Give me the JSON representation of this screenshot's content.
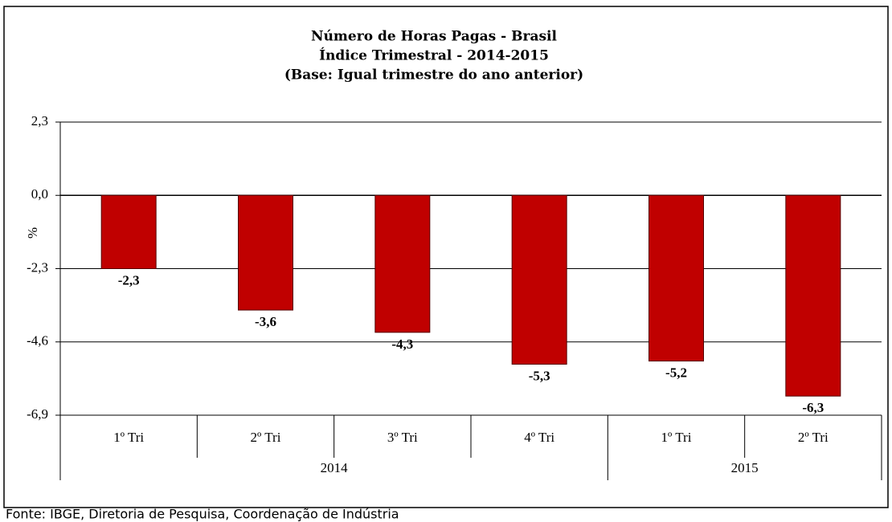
{
  "chart_data": {
    "type": "bar",
    "title": [
      "Número de Horas Pagas - Brasil",
      "Índice Trimestral - 2014-2015",
      "(Base: Igual trimestre do ano anterior)"
    ],
    "y_label": "%",
    "categories": [
      "1º Tri",
      "2º Tri",
      "3º Tri",
      "4º Tri",
      "1º Tri",
      "2º Tri"
    ],
    "category_groups": [
      "2014",
      "2014",
      "2014",
      "2014",
      "2015",
      "2015"
    ],
    "values": [
      -2.3,
      -3.6,
      -4.3,
      -5.3,
      -5.2,
      -6.3
    ],
    "value_labels": [
      "-2,3",
      "-3,6",
      "-4,3",
      "-5,3",
      "-5,2",
      "-6,3"
    ],
    "color": "#c00000",
    "ylim": [
      -6.9,
      2.3
    ],
    "yticks": [
      {
        "value": 2.3,
        "label": "2,3"
      },
      {
        "value": 0,
        "label": "0,0"
      },
      {
        "value": -2.3,
        "label": "-2,3"
      },
      {
        "value": -4.6,
        "label": "-4,6"
      },
      {
        "value": -6.9,
        "label": "-6,9"
      }
    ],
    "grid": true,
    "source": "Fonte: IBGE, Diretoria de Pesquisa, Coordenação de Indústria"
  }
}
